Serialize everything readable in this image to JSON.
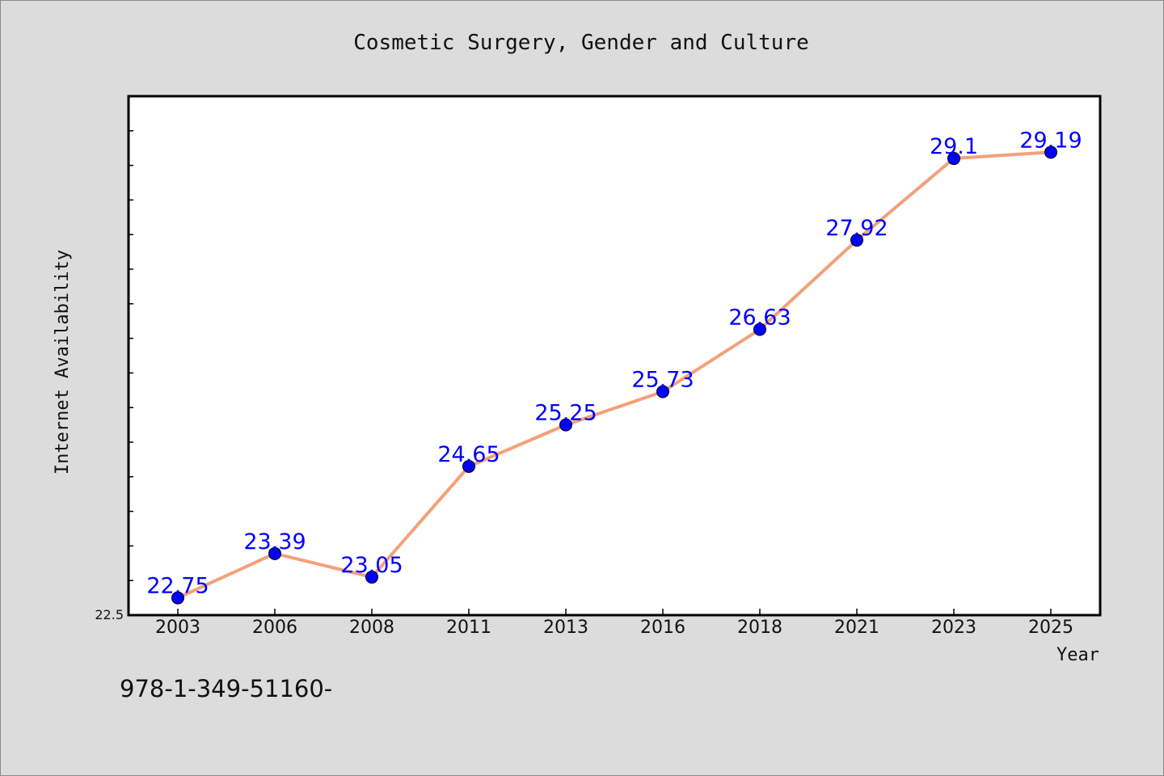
{
  "chart_data": {
    "type": "line",
    "title": "Cosmetic Surgery, Gender and Culture",
    "xlabel": "Year",
    "ylabel": "Internet Availability",
    "categories": [
      "2003",
      "2006",
      "2008",
      "2011",
      "2013",
      "2016",
      "2018",
      "2021",
      "2023",
      "2025"
    ],
    "series": [
      {
        "values": [
          22.75,
          23.39,
          23.05,
          24.65,
          25.25,
          25.73,
          26.63,
          27.92,
          29.1,
          29.19
        ],
        "data_labels": [
          "22.75",
          "23.39",
          "23.05",
          "24.65",
          "25.25",
          "25.73",
          "26.63",
          "27.92",
          "29.1",
          "29.19"
        ],
        "line_color": "#f4a07a",
        "marker_color": "#0000ff"
      }
    ],
    "ylim": [
      22.5,
      30.0
    ],
    "y_tick_label": "22.5",
    "grid": false,
    "legend": "none",
    "plot_background": "#ffffff",
    "figure_background": "#dcdcdc",
    "data_label_color": "#0000ff"
  },
  "footnote": "978-1-349-51160-"
}
